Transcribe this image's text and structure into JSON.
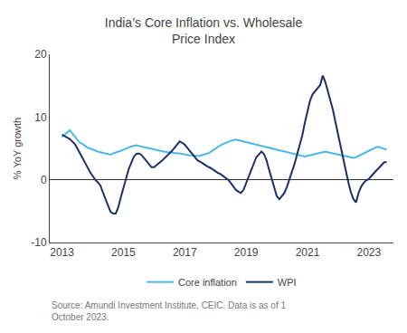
{
  "chart_data": {
    "type": "line",
    "title": "India’s Core Inflation vs. Wholesale\nPrice Index",
    "ylabel": "% YoY growth",
    "annotations": [
      "Source: Amundi Investment Institute, CEIC. Data is as of 1\nOctober 2023."
    ],
    "x": [
      2013.0,
      2013.0833,
      2013.1666,
      2013.2499,
      2013.3332,
      2013.4165,
      2013.4998,
      2013.5831,
      2013.6665,
      2013.7498,
      2013.8331,
      2013.9164,
      2013.9997,
      2014.083,
      2014.1663,
      2014.2496,
      2014.3329,
      2014.4162,
      2014.4995,
      2014.5828,
      2014.6661,
      2014.7494,
      2014.8328,
      2014.9161,
      2014.9994,
      2015.0827,
      2015.166,
      2015.2493,
      2015.3326,
      2015.4159,
      2015.4992,
      2015.5825,
      2015.6658,
      2015.7491,
      2015.8324,
      2015.9157,
      2015.9991,
      2016.0824,
      2016.1657,
      2016.249,
      2016.3323,
      2016.4156,
      2016.4989,
      2016.5822,
      2016.6655,
      2016.7488,
      2016.8321,
      2016.9154,
      2016.9987,
      2017.082,
      2017.1654,
      2017.2487,
      2017.332,
      2017.4153,
      2017.4986,
      2017.5819,
      2017.6652,
      2017.7485,
      2017.8318,
      2017.9151,
      2017.9984,
      2018.0817,
      2018.165,
      2018.2483,
      2018.3317,
      2018.415,
      2018.4983,
      2018.5816,
      2018.6649,
      2018.7482,
      2018.8315,
      2018.9148,
      2018.9981,
      2019.0814,
      2019.1647,
      2019.248,
      2019.3313,
      2019.4146,
      2019.498,
      2019.5813,
      2019.6646,
      2019.7479,
      2019.8312,
      2019.9145,
      2019.9978,
      2020.0811,
      2020.1644,
      2020.2477,
      2020.331,
      2020.4143,
      2020.4976,
      2020.5809,
      2020.6643,
      2020.7476,
      2020.8309,
      2020.9142,
      2020.9975,
      2021.0808,
      2021.1641,
      2021.2474,
      2021.3307,
      2021.414,
      2021.4973,
      2021.5806,
      2021.6639,
      2021.7472,
      2021.8306,
      2021.9139,
      2021.9972,
      2022.0805,
      2022.1638,
      2022.2471,
      2022.3304,
      2022.4137,
      2022.497,
      2022.5803,
      2022.6636,
      2022.7469,
      2022.8302,
      2022.9135,
      2022.9969,
      2023.0802,
      2023.1635,
      2023.2468,
      2023.3301,
      2023.4134,
      2023.4967,
      2023.58
    ],
    "series": [
      {
        "name": "Core inflation",
        "color": "#4db8e8",
        "values": [
          6.8,
          7.2,
          7.6,
          7.9,
          7.4,
          6.9,
          6.4,
          5.9,
          5.7,
          5.4,
          5.1,
          5.0,
          4.8,
          4.6,
          4.5,
          4.4,
          4.3,
          4.2,
          4.1,
          4.0,
          4.2,
          4.3,
          4.5,
          4.6,
          4.8,
          5.0,
          5.2,
          5.3,
          5.4,
          5.5,
          5.4,
          5.3,
          5.2,
          5.1,
          5.0,
          4.9,
          4.8,
          4.7,
          4.6,
          4.5,
          4.5,
          4.4,
          4.4,
          4.3,
          4.3,
          4.2,
          4.2,
          4.1,
          4.1,
          4.0,
          3.9,
          3.9,
          3.8,
          3.8,
          3.8,
          3.9,
          4.0,
          4.2,
          4.4,
          4.7,
          5.0,
          5.3,
          5.5,
          5.7,
          5.9,
          6.0,
          6.2,
          6.3,
          6.4,
          6.3,
          6.2,
          6.1,
          6.0,
          5.9,
          5.8,
          5.7,
          5.6,
          5.5,
          5.4,
          5.3,
          5.2,
          5.1,
          4.9,
          4.8,
          4.8,
          4.7,
          4.6,
          4.5,
          4.4,
          4.3,
          4.2,
          4.1,
          4.0,
          3.9,
          3.8,
          3.7,
          3.8,
          3.9,
          4.0,
          4.1,
          4.2,
          4.3,
          4.4,
          4.5,
          4.4,
          4.3,
          4.2,
          4.1,
          4.0,
          3.9,
          3.8,
          3.7,
          3.6,
          3.5,
          3.5,
          3.6,
          3.8,
          4.0,
          4.2,
          4.4,
          4.6,
          4.8,
          5.0,
          5.2,
          5.2,
          5.1,
          5.0,
          4.8
        ]
      },
      {
        "name": "WPI",
        "color": "#1a3068",
        "values": [
          7.2,
          7.0,
          6.8,
          6.5,
          6.1,
          5.7,
          5.0,
          4.2,
          3.4,
          2.6,
          1.8,
          1.2,
          0.6,
          0.0,
          -0.4,
          -0.9,
          -2.0,
          -3.2,
          -4.1,
          -5.1,
          -5.4,
          -5.4,
          -4.4,
          -2.8,
          -1.5,
          0.1,
          1.6,
          2.5,
          3.6,
          4.1,
          4.2,
          4.0,
          3.5,
          3.0,
          2.5,
          2.0,
          2.0,
          2.3,
          2.6,
          3.0,
          3.4,
          3.8,
          4.1,
          4.6,
          5.1,
          5.6,
          6.1,
          5.9,
          5.6,
          5.1,
          4.6,
          4.1,
          3.6,
          3.1,
          2.9,
          2.6,
          2.3,
          2.1,
          1.9,
          1.6,
          1.3,
          1.1,
          0.9,
          0.6,
          0.3,
          0.0,
          -0.5,
          -1.0,
          -1.6,
          -1.9,
          -2.1,
          -1.6,
          -0.5,
          0.6,
          1.6,
          2.6,
          3.6,
          4.0,
          4.5,
          4.1,
          3.1,
          1.6,
          0.1,
          -1.5,
          -2.6,
          -3.1,
          -2.6,
          -2.1,
          -1.1,
          0.1,
          1.1,
          2.6,
          4.1,
          5.6,
          7.1,
          9.1,
          11.1,
          12.6,
          13.6,
          14.1,
          14.6,
          15.1,
          16.6,
          15.6,
          14.1,
          12.6,
          11.1,
          9.1,
          7.1,
          5.1,
          3.1,
          1.1,
          -0.4,
          -2.0,
          -3.1,
          -3.6,
          -2.1,
          -1.1,
          -0.5,
          -0.1,
          0.1,
          0.6,
          1.1,
          1.5,
          1.9,
          2.3,
          2.8,
          2.8
        ]
      }
    ],
    "xlim": [
      2012.6,
      2023.8
    ],
    "xticks": [
      2013,
      2015,
      2017,
      2019,
      2021,
      2023
    ],
    "ylim": [
      -10,
      20
    ],
    "yticks": [
      -10,
      0,
      10,
      20
    ],
    "grid": false,
    "legend": "bottom"
  }
}
